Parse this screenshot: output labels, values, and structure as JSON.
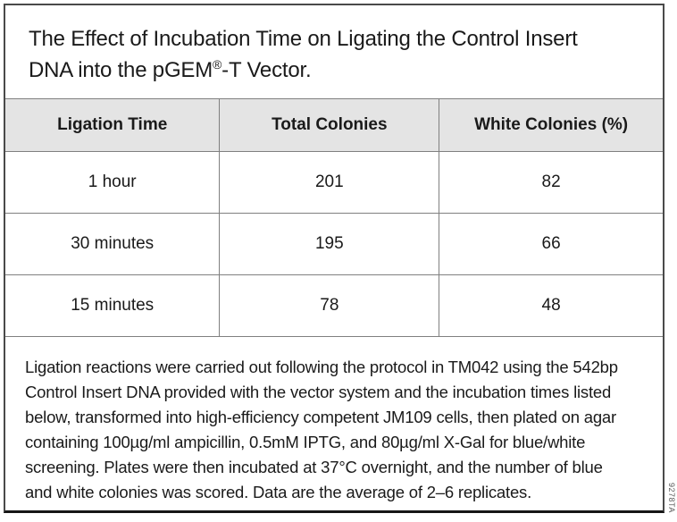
{
  "title": {
    "pre": "The Effect of Incubation Time on Ligating the Control Insert DNA into the pGEM",
    "registered_mark": "®",
    "post": "-T Vector."
  },
  "table": {
    "columns": [
      "Ligation Time",
      "Total Colonies",
      "White Colonies (%)"
    ],
    "rows": [
      [
        "1 hour",
        "201",
        "82"
      ],
      [
        "30 minutes",
        "195",
        "66"
      ],
      [
        "15 minutes",
        "78",
        "48"
      ]
    ]
  },
  "footnote": "Ligation reactions were carried out following the protocol in TM042 using the 542bp Control Insert DNA provided with the vector system and the incubation times listed below, transformed into high-efficiency competent JM109 cells, then plated on agar containing 100µg/ml ampicillin, 0.5mM IPTG, and 80µg/ml X-Gal for blue/white screening. Plates were then incubated at 37°C overnight, and the number of blue and white colonies was scored. Data are the average of 2–6 replicates.",
  "figure_code": "9278TA",
  "colors": {
    "header_background": "#e4e4e4",
    "grid_line": "#808080",
    "outer_border": "#4a4a4a",
    "text": "#1a1a1a"
  }
}
